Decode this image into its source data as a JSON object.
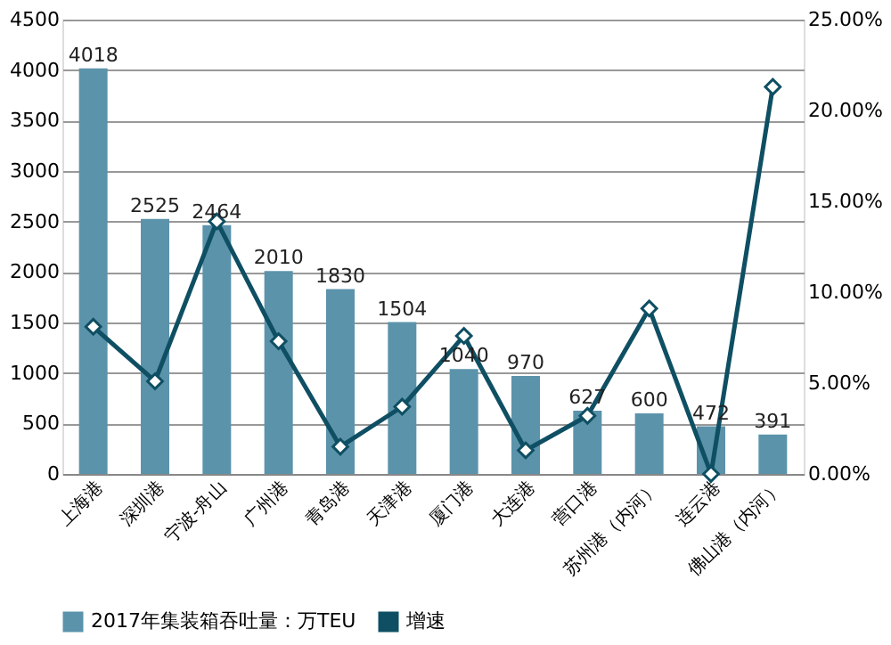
{
  "chart_data": {
    "type": "bar",
    "categories": [
      "上海港",
      "深圳港",
      "宁波-舟山",
      "广州港",
      "青岛港",
      "天津港",
      "厦门港",
      "大连港",
      "营口港",
      "苏州港（内河）",
      "连云港",
      "佛山港（内河）"
    ],
    "series": [
      {
        "name": "2017年集装箱吞吐量：万TEU",
        "color": "#5b93ab",
        "data_labels": true,
        "values": [
          4018,
          2525,
          2464,
          2010,
          1830,
          1504,
          1040,
          970,
          627,
          600,
          472,
          391
        ]
      },
      {
        "name": "增速",
        "type": "line",
        "axis": "y2",
        "color": "#0f4f63",
        "marker": "diamond",
        "values": [
          8.1,
          5.1,
          13.9,
          7.3,
          1.5,
          3.7,
          7.6,
          1.3,
          3.2,
          9.1,
          0,
          21.3
        ]
      }
    ],
    "ylim": [
      0,
      4500
    ],
    "yticks": [
      0,
      500,
      1000,
      1500,
      2000,
      2500,
      3000,
      3500,
      4000,
      4500
    ],
    "y2lim": [
      0,
      25
    ],
    "y2ticks": [
      {
        "value": 0,
        "label": "0.00%"
      },
      {
        "value": 5,
        "label": "5.00%"
      },
      {
        "value": 10,
        "label": "10.00%"
      },
      {
        "value": 15,
        "label": "15.00%"
      },
      {
        "value": 20,
        "label": "20.00%"
      },
      {
        "value": 25,
        "label": "25.00%"
      }
    ],
    "grid": "y",
    "legend": "bottom"
  }
}
